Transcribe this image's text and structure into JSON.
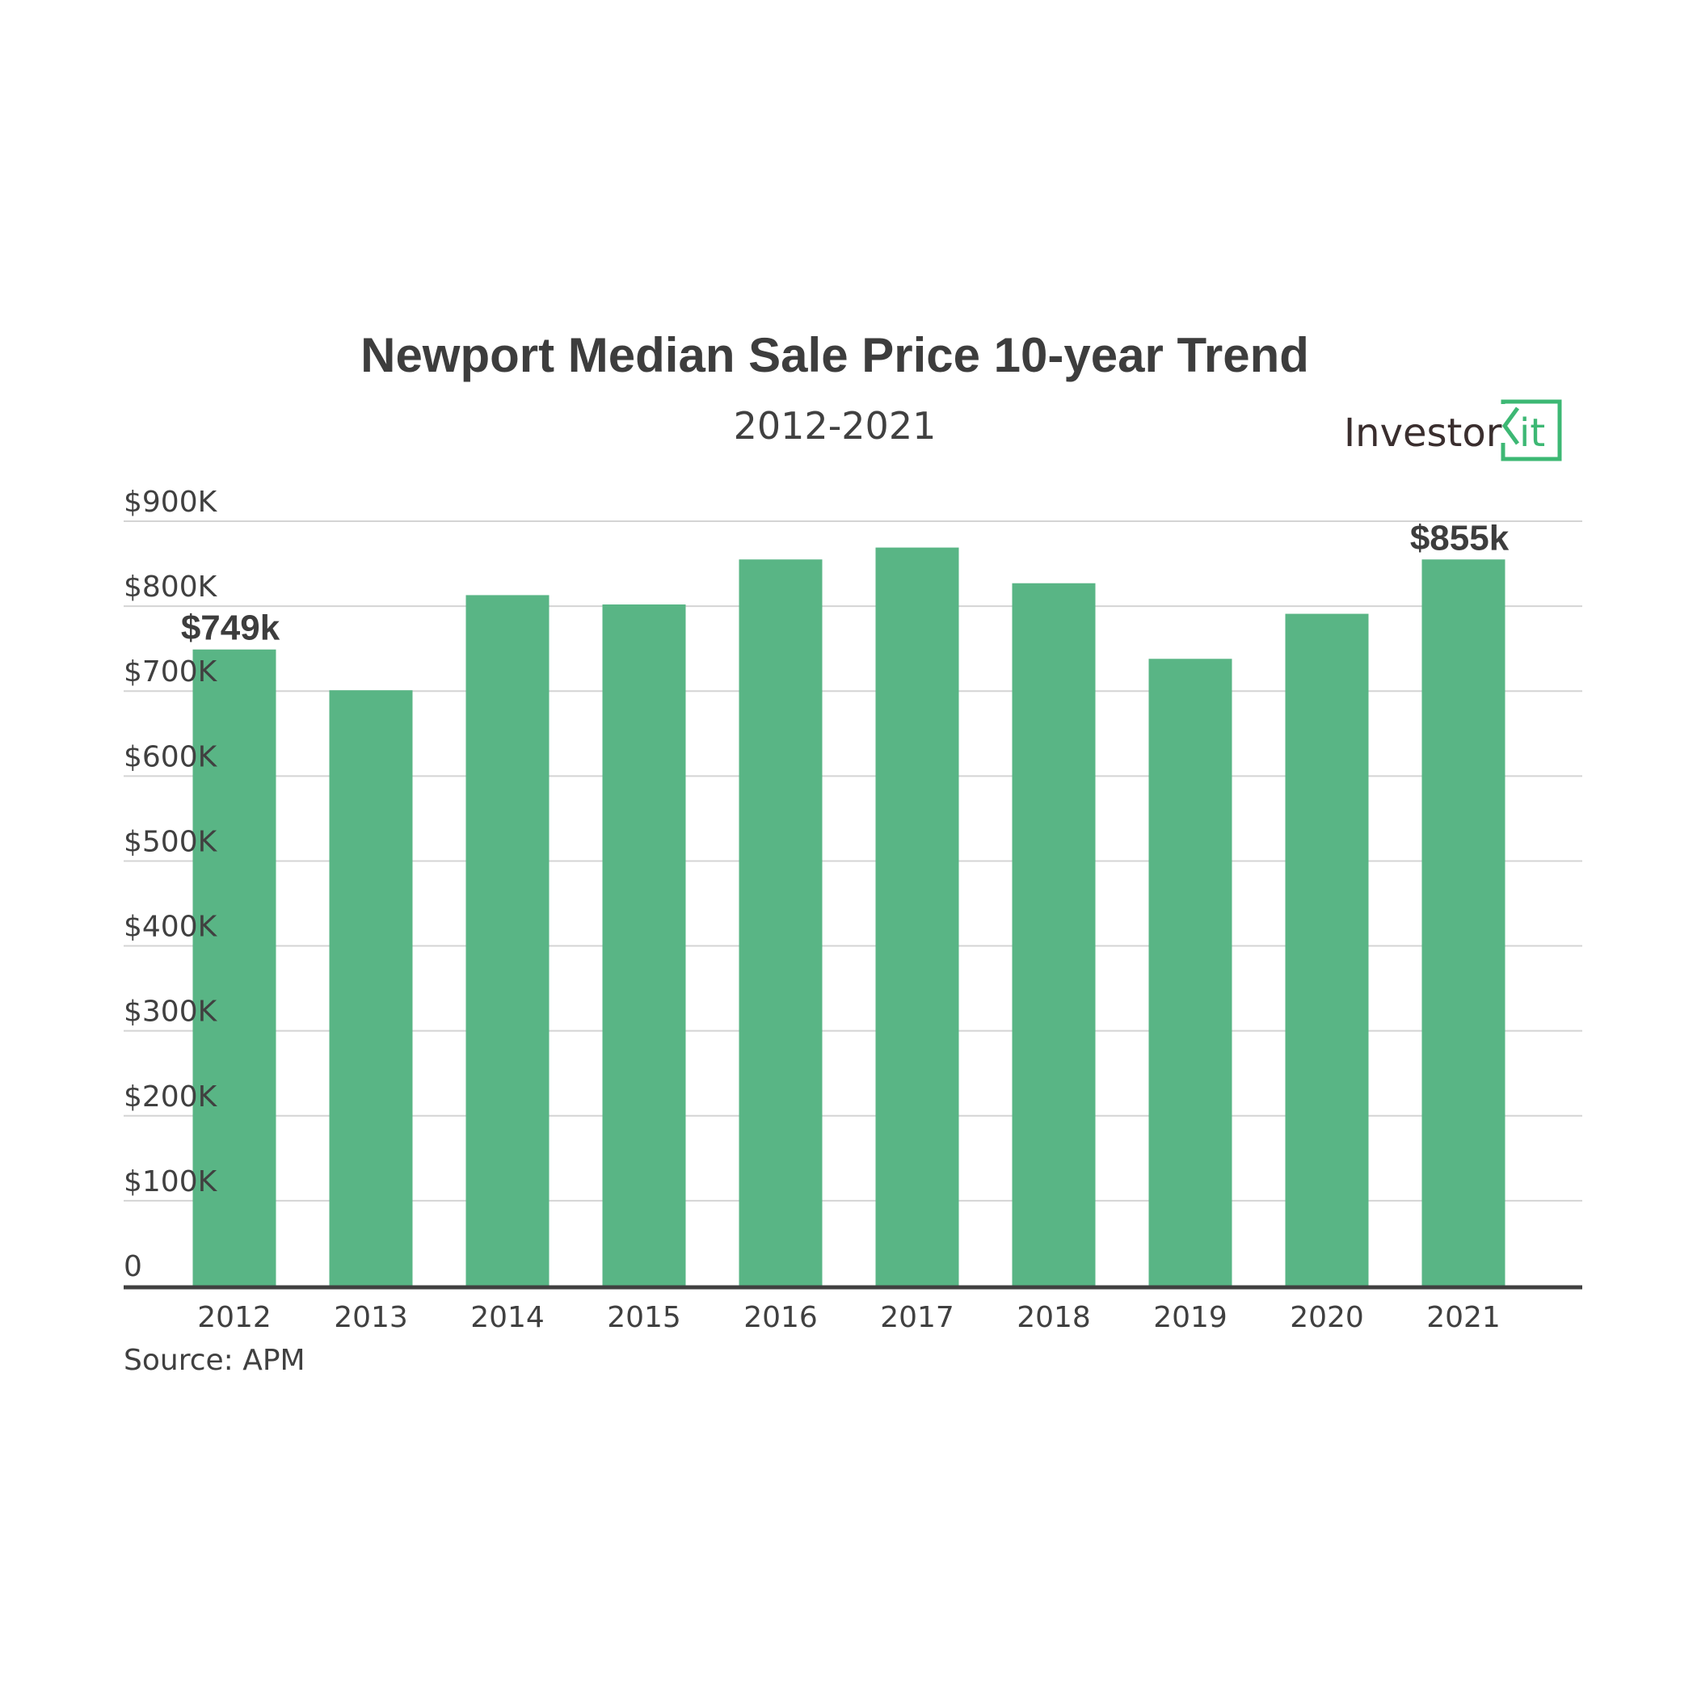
{
  "colors": {
    "bar": "#59b585",
    "text": "#404040",
    "title": "#3d3d3d",
    "grid": "#d4d4d4",
    "axis": "#404040",
    "logo_text": "#3a2e2e",
    "logo_accent": "#3db874"
  },
  "logo": {
    "prefix": "Investor",
    "suffix": "Kit"
  },
  "source": "Source: APM",
  "chart_data": {
    "type": "bar",
    "title": "Newport Median Sale Price 10-year Trend",
    "subtitle": "2012-2021",
    "xlabel": "",
    "ylabel": "",
    "categories": [
      "2012",
      "2013",
      "2014",
      "2015",
      "2016",
      "2017",
      "2018",
      "2019",
      "2020",
      "2021"
    ],
    "values": [
      749,
      701,
      813,
      802,
      855,
      869,
      827,
      738,
      791,
      855
    ],
    "units": "thousand AUD",
    "ylim": [
      0,
      900
    ],
    "yticks": [
      0,
      100,
      200,
      300,
      400,
      500,
      600,
      700,
      800,
      900
    ],
    "ytick_labels": [
      "0",
      "$100K",
      "$200K",
      "$300K",
      "$400K",
      "$500K",
      "$600K",
      "$700K",
      "$800K",
      "$900K"
    ],
    "grid": true,
    "legend": "none",
    "data_labels": [
      {
        "category": "2012",
        "text": "$749k"
      },
      {
        "category": "2021",
        "text": "$855k"
      }
    ]
  }
}
